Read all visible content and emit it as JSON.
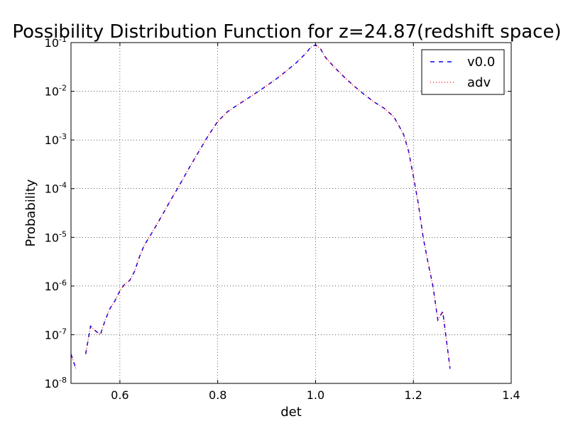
{
  "chart_data": {
    "type": "line",
    "title": "Possibility Distribution Function for z=24.87(redshift space)",
    "xlabel": "det",
    "ylabel": "Probability",
    "xlim": [
      0.5,
      1.4
    ],
    "ylim": [
      1e-08,
      0.1
    ],
    "yscale": "log",
    "grid": true,
    "legend": "top-right",
    "xticks": [
      "0.6",
      "0.8",
      "1.0",
      "1.2",
      "1.4"
    ],
    "yticks": [
      {
        "base": "10",
        "exp": "-8"
      },
      {
        "base": "10",
        "exp": "-7"
      },
      {
        "base": "10",
        "exp": "-6"
      },
      {
        "base": "10",
        "exp": "-5"
      },
      {
        "base": "10",
        "exp": "-4"
      },
      {
        "base": "10",
        "exp": "-3"
      },
      {
        "base": "10",
        "exp": "-2"
      },
      {
        "base": "10",
        "exp": "-1"
      }
    ],
    "x": [
      0.5,
      0.51,
      0.52,
      0.53,
      0.54,
      0.55,
      0.56,
      0.57,
      0.58,
      0.59,
      0.6,
      0.61,
      0.62,
      0.63,
      0.64,
      0.65,
      0.66,
      0.68,
      0.7,
      0.72,
      0.74,
      0.76,
      0.78,
      0.8,
      0.82,
      0.84,
      0.86,
      0.88,
      0.9,
      0.92,
      0.94,
      0.96,
      0.98,
      0.99,
      1.0,
      1.01,
      1.02,
      1.04,
      1.06,
      1.08,
      1.1,
      1.12,
      1.14,
      1.16,
      1.17,
      1.18,
      1.19,
      1.2,
      1.21,
      1.22,
      1.23,
      1.24,
      1.25,
      1.26,
      1.27,
      1.275,
      1.28,
      1.285,
      1.29,
      1.3
    ],
    "series": [
      {
        "name": "v0.0",
        "color": "#0000ff",
        "style": "dashed",
        "values": [
          4e-08,
          2e-08,
          null,
          4e-08,
          1.5e-07,
          1.2e-07,
          1e-07,
          2e-07,
          3.5e-07,
          5e-07,
          8e-07,
          1.1e-06,
          1.3e-06,
          2e-06,
          4e-06,
          7e-06,
          1e-05,
          2.2e-05,
          5e-05,
          0.00011,
          0.00025,
          0.00055,
          0.0012,
          0.0024,
          0.0038,
          0.0052,
          0.007,
          0.0095,
          0.013,
          0.018,
          0.026,
          0.038,
          0.06,
          0.08,
          0.09,
          0.075,
          0.05,
          0.03,
          0.019,
          0.0125,
          0.0085,
          0.006,
          0.0045,
          0.003,
          0.002,
          0.0013,
          0.0006,
          0.00018,
          5e-05,
          1e-05,
          3e-06,
          1e-06,
          2e-07,
          3e-07,
          5e-08,
          2e-08,
          null,
          null,
          null,
          null
        ]
      },
      {
        "name": "adv",
        "color": "#ff0000",
        "style": "dotted",
        "values": [
          4e-08,
          2e-08,
          null,
          4e-08,
          1.5e-07,
          1.2e-07,
          1e-07,
          2e-07,
          3.5e-07,
          5e-07,
          8e-07,
          1.1e-06,
          1.3e-06,
          2e-06,
          4e-06,
          7e-06,
          1e-05,
          2.2e-05,
          5e-05,
          0.00011,
          0.00025,
          0.00055,
          0.0012,
          0.0024,
          0.0038,
          0.0052,
          0.007,
          0.0095,
          0.013,
          0.018,
          0.026,
          0.038,
          0.06,
          0.08,
          0.09,
          0.075,
          0.05,
          0.03,
          0.019,
          0.0125,
          0.0085,
          0.006,
          0.0045,
          0.003,
          0.002,
          0.0013,
          0.0006,
          0.00018,
          5e-05,
          1e-05,
          3e-06,
          1e-06,
          2e-07,
          3e-07,
          5e-08,
          2e-08,
          null,
          null,
          null,
          null
        ]
      }
    ]
  }
}
